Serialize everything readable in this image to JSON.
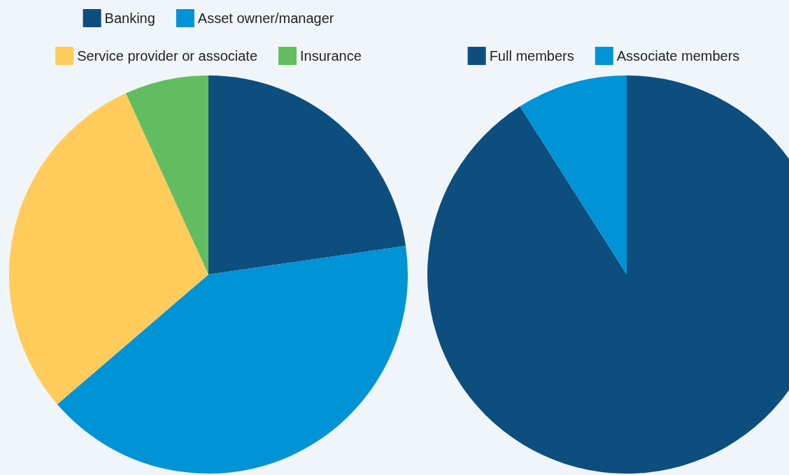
{
  "chart_data": [
    {
      "type": "pie",
      "categories": [
        "Banking",
        "Asset owner/manager",
        "Service provider or associate",
        "Insurance"
      ],
      "values": [
        22.7,
        41.0,
        29.5,
        6.8
      ],
      "colors": [
        "#0d4e7e",
        "#0093d6",
        "#ffcc5c",
        "#62bd60"
      ],
      "legend": "top"
    },
    {
      "type": "pie",
      "categories": [
        "Full members",
        "Associate members"
      ],
      "values": [
        91,
        9
      ],
      "colors": [
        "#0d4e7e",
        "#0093d6"
      ],
      "legend": "top"
    }
  ]
}
